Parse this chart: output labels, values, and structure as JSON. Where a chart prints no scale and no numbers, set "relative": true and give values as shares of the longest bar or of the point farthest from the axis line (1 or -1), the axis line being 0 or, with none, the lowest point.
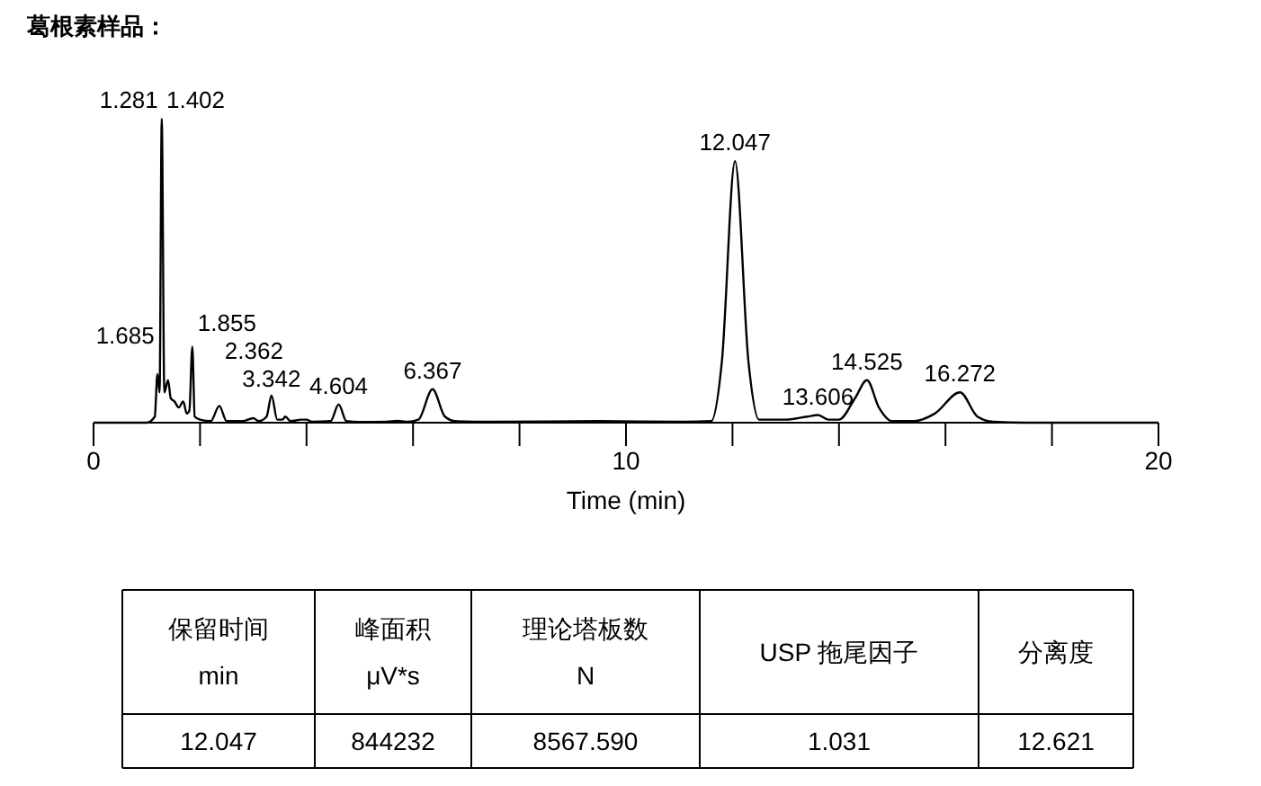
{
  "chart_data": {
    "type": "line",
    "title": "葛根素样品：",
    "xlabel": "Time (min)",
    "relative": true,
    "xlim": [
      0,
      20
    ],
    "xticks": [
      0,
      {
        "value": 2,
        "label": null
      },
      {
        "value": 4,
        "label": null
      },
      {
        "value": 6,
        "label": null
      },
      {
        "value": 8,
        "label": null
      },
      10,
      {
        "value": 12,
        "label": null
      },
      {
        "value": 14,
        "label": null
      },
      {
        "value": 16,
        "label": null
      },
      {
        "value": 18,
        "label": null
      },
      20
    ],
    "grid": false,
    "marker": "none",
    "line_style": "solid",
    "series": [
      {
        "color": "#000000",
        "x": [
          0,
          1.0,
          1.15,
          1.2,
          1.24,
          1.281,
          1.33,
          1.4,
          1.45,
          1.52,
          1.6,
          1.685,
          1.75,
          1.8,
          1.855,
          1.9,
          2.0,
          2.2,
          2.362,
          2.5,
          2.8,
          3.0,
          3.1,
          3.25,
          3.342,
          3.45,
          3.55,
          3.6,
          3.7,
          3.9,
          4.0,
          4.1,
          4.45,
          4.604,
          4.75,
          5.0,
          5.5,
          5.7,
          5.9,
          6.1,
          6.367,
          6.6,
          6.8,
          7.5,
          9.5,
          11.0,
          11.6,
          11.8,
          12.047,
          12.3,
          12.5,
          13.0,
          13.4,
          13.606,
          13.8,
          14.0,
          14.3,
          14.525,
          14.75,
          15.0,
          15.4,
          15.8,
          16.272,
          16.6,
          16.9,
          17.5,
          19.5,
          20
        ],
        "values": [
          0,
          0,
          0.02,
          0.16,
          0.1,
          1.0,
          0.1,
          0.14,
          0.08,
          0.07,
          0.05,
          0.07,
          0.03,
          0.04,
          0.25,
          0.02,
          0.01,
          0.005,
          0.055,
          0.005,
          0.005,
          0.015,
          0.005,
          0.02,
          0.09,
          0.01,
          0.01,
          0.02,
          0.005,
          0.01,
          0.01,
          0.003,
          0.005,
          0.06,
          0.005,
          0.002,
          0.003,
          0.006,
          0.003,
          0.01,
          0.11,
          0.02,
          0.005,
          0.003,
          0.005,
          0.003,
          0.005,
          0.2,
          0.86,
          0.2,
          0.01,
          0.01,
          0.02,
          0.025,
          0.01,
          0.01,
          0.08,
          0.14,
          0.05,
          0.005,
          0.005,
          0.03,
          0.1,
          0.02,
          0.003,
          0,
          0,
          0
        ]
      }
    ],
    "annotations": [
      {
        "text": "1.281",
        "x": 1.281,
        "y": 1.0
      },
      {
        "text": "1.402",
        "x": 1.402,
        "y": 1.0
      },
      {
        "text": "1.685",
        "x": 1.685,
        "y": 0.25
      },
      {
        "text": "1.855",
        "x": 1.855,
        "y": 0.25
      },
      {
        "text": "2.362",
        "x": 2.362,
        "y": 0.055
      },
      {
        "text": "3.342",
        "x": 3.342,
        "y": 0.09
      },
      {
        "text": "4.604",
        "x": 4.604,
        "y": 0.06
      },
      {
        "text": "6.367",
        "x": 6.367,
        "y": 0.11
      },
      {
        "text": "12.047",
        "x": 12.047,
        "y": 0.86
      },
      {
        "text": "13.606",
        "x": 13.606,
        "y": 0.025
      },
      {
        "text": "14.525",
        "x": 14.525,
        "y": 0.14
      },
      {
        "text": "16.272",
        "x": 16.272,
        "y": 0.1
      },
      "保留时间\nmin",
      "峰面积\nμV*s",
      "理论塔板数\nN",
      "USP 拖尾因子",
      "分离度",
      "12.047",
      "844232",
      "8567.590",
      "1.031",
      "12.621"
    ]
  }
}
